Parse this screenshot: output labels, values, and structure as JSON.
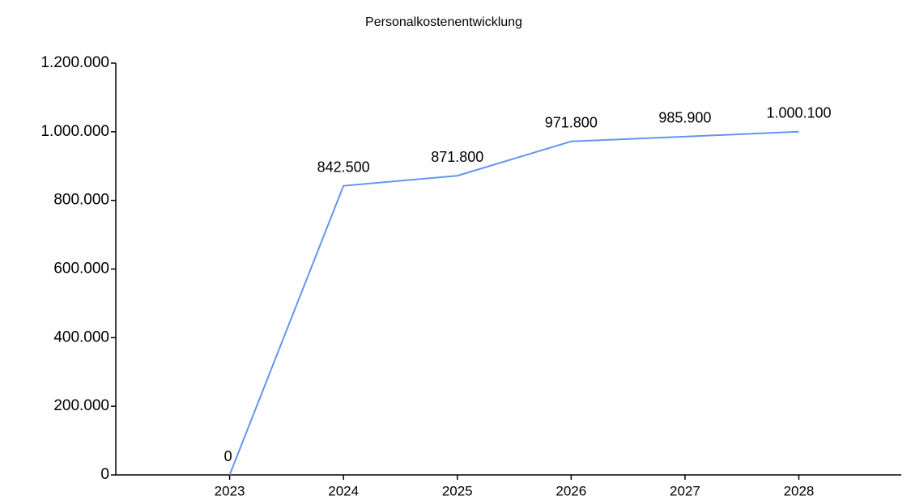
{
  "chart_data": {
    "type": "line",
    "title": "Personalkostenentwicklung",
    "categories": [
      "2023",
      "2024",
      "2025",
      "2026",
      "2027",
      "2028"
    ],
    "series": [
      {
        "color": "#6495ed",
        "values": [
          0,
          842500,
          871800,
          971800,
          985900,
          1000100
        ],
        "value_labels": [
          "0",
          "842.500",
          "871.800",
          "971.800",
          "985.900",
          "1.000.100"
        ]
      }
    ],
    "ylim": [
      0,
      1200000
    ],
    "yticks": [
      0,
      {
        "value": 200000,
        "label": "200.000"
      },
      {
        "value": 400000,
        "label": "400.000"
      },
      {
        "value": 600000,
        "label": "600.000"
      },
      {
        "value": 800000,
        "label": "800.000"
      },
      {
        "value": 1000000,
        "label": "1.000.000"
      },
      {
        "value": 1200000,
        "label": "1.200.000"
      }
    ],
    "grid": false
  }
}
